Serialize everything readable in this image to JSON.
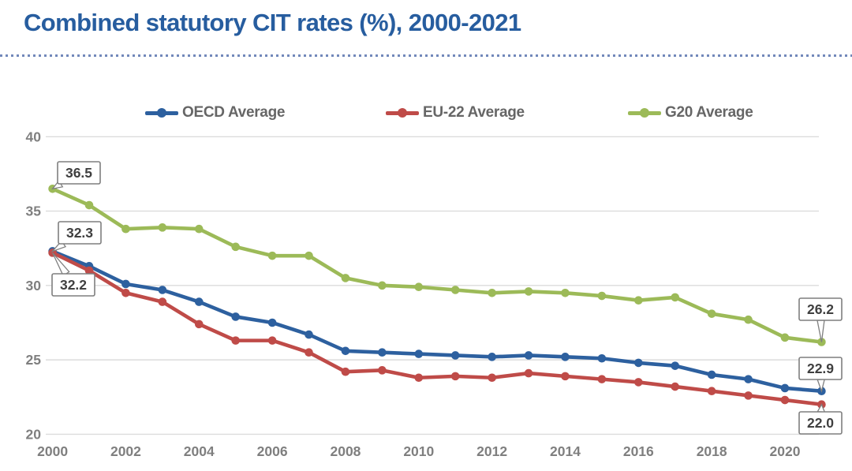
{
  "title": "Combined statutory CIT rates (%), 2000-2021",
  "colors": {
    "title": "#275d9f",
    "divider": "#7288ba",
    "grid": "#dcdcdc",
    "axis_text": "#7f7f7f",
    "legend_text": "#666666",
    "callout_text": "#404040",
    "callout_border": "#7f7f7f",
    "callout_fill": "#ffffff"
  },
  "chart_data": {
    "type": "line",
    "x": [
      2000,
      2001,
      2002,
      2003,
      2004,
      2005,
      2006,
      2007,
      2008,
      2009,
      2010,
      2011,
      2012,
      2013,
      2014,
      2015,
      2016,
      2017,
      2018,
      2019,
      2020,
      2021
    ],
    "x_tick_labels": [
      "2000",
      "2002",
      "2004",
      "2006",
      "2008",
      "2010",
      "2012",
      "2014",
      "2016",
      "2018",
      "2020"
    ],
    "y_ticks": [
      20,
      25,
      30,
      35,
      40
    ],
    "ylim": [
      20,
      40
    ],
    "xlabel": "",
    "ylabel": "",
    "grid": "horizontal",
    "legend_position": "top",
    "series": [
      {
        "name": "OECD Average",
        "color": "#2d609f",
        "values": [
          32.3,
          31.3,
          30.1,
          29.7,
          28.9,
          27.9,
          27.5,
          26.7,
          25.6,
          25.5,
          25.4,
          25.3,
          25.2,
          25.3,
          25.2,
          25.1,
          24.8,
          24.6,
          24.0,
          23.7,
          23.1,
          22.9
        ]
      },
      {
        "name": "EU-22 Average",
        "color": "#bf4b48",
        "values": [
          32.2,
          31.0,
          29.5,
          28.9,
          27.4,
          26.3,
          26.3,
          25.5,
          24.2,
          24.3,
          23.8,
          23.9,
          23.8,
          24.1,
          23.9,
          23.7,
          23.5,
          23.2,
          22.9,
          22.6,
          22.3,
          22.0
        ]
      },
      {
        "name": "G20 Average",
        "color": "#9cba58",
        "values": [
          36.5,
          35.4,
          33.8,
          33.9,
          33.8,
          32.6,
          32.0,
          32.0,
          30.5,
          30.0,
          29.9,
          29.7,
          29.5,
          29.6,
          29.5,
          29.3,
          29.0,
          29.2,
          28.1,
          27.7,
          26.5,
          26.2
        ]
      }
    ],
    "callouts": [
      {
        "series": "G20 Average",
        "year": 2000,
        "label": "36.5"
      },
      {
        "series": "OECD Average",
        "year": 2000,
        "label": "32.3"
      },
      {
        "series": "EU-22 Average",
        "year": 2000,
        "label": "32.2"
      },
      {
        "series": "G20 Average",
        "year": 2021,
        "label": "26.2"
      },
      {
        "series": "OECD Average",
        "year": 2021,
        "label": "22.9"
      },
      {
        "series": "EU-22 Average",
        "year": 2021,
        "label": "22.0"
      }
    ]
  }
}
